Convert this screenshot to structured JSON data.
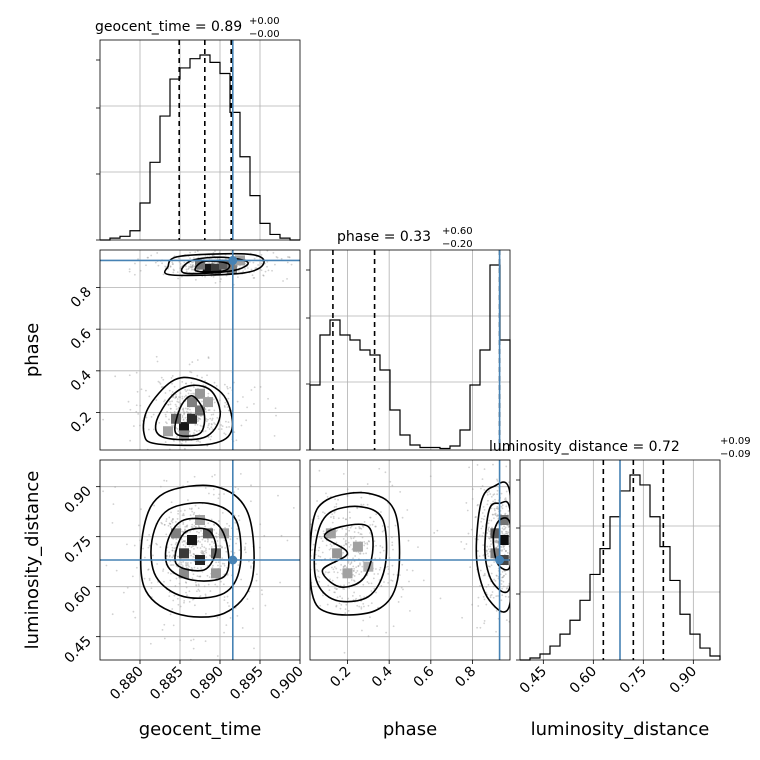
{
  "colors": {
    "truth": "#4682b4",
    "contour": "#000000",
    "grid": "#b0b0b0"
  },
  "chart_data": {
    "type": "corner",
    "parameters": [
      {
        "key": "geocent_time",
        "axis_label": "geocent_time",
        "title_main": "geocent_time = 0.89",
        "title_sup": "+0.00",
        "title_sub": "−0.00",
        "range": [
          0.875,
          0.9
        ],
        "ticks": [
          0.88,
          0.885,
          0.89,
          0.895,
          0.9
        ],
        "tick_labels": [
          "0.880",
          "0.885",
          "0.890",
          "0.895",
          "0.900"
        ],
        "truth": 0.8916,
        "quantiles": [
          0.8849,
          0.8881,
          0.8914
        ],
        "hist_edges": [
          0.875,
          0.87625,
          0.8775,
          0.87875,
          0.88,
          0.88125,
          0.8825,
          0.88375,
          0.885,
          0.88625,
          0.8875,
          0.88875,
          0.89,
          0.89125,
          0.8925,
          0.89375,
          0.895,
          0.89625,
          0.8975,
          0.89875,
          0.9
        ],
        "hist_counts": [
          0,
          0.01,
          0.02,
          0.05,
          0.2,
          0.42,
          0.67,
          0.87,
          0.93,
          0.98,
          1.0,
          0.96,
          0.9,
          0.69,
          0.45,
          0.24,
          0.09,
          0.03,
          0.01,
          0
        ]
      },
      {
        "key": "phase",
        "axis_label": "phase",
        "title_main": "phase = 0.33",
        "title_sup": "+0.60",
        "title_sub": "−0.20",
        "range": [
          0.02,
          0.98
        ],
        "ticks": [
          0.2,
          0.4,
          0.6,
          0.8
        ],
        "tick_labels": [
          "0.2",
          "0.4",
          "0.6",
          "0.8"
        ],
        "truth": 0.93,
        "quantiles": [
          0.13,
          0.33,
          0.93
        ],
        "hist_edges": [
          0.02,
          0.068,
          0.116,
          0.164,
          0.212,
          0.26,
          0.308,
          0.356,
          0.404,
          0.452,
          0.5,
          0.548,
          0.596,
          0.644,
          0.692,
          0.74,
          0.788,
          0.836,
          0.884,
          0.932,
          0.98
        ],
        "hist_counts": [
          0.13,
          0.23,
          0.26,
          0.23,
          0.22,
          0.2,
          0.19,
          0.16,
          0.08,
          0.03,
          0.01,
          0.005,
          0.005,
          0.003,
          0.008,
          0.04,
          0.13,
          0.2,
          0.37,
          0.22
        ]
      },
      {
        "key": "luminosity_distance",
        "axis_label": "luminosity_distance",
        "title_main": "luminosity_distance = 0.72",
        "title_sup": "+0.09",
        "title_sub": "−0.09",
        "range": [
          0.38,
          0.98
        ],
        "ticks": [
          0.45,
          0.6,
          0.75,
          0.9
        ],
        "tick_labels": [
          "0.45",
          "0.60",
          "0.75",
          "0.90"
        ],
        "truth": 0.68,
        "quantiles": [
          0.63,
          0.72,
          0.81
        ],
        "hist_edges": [
          0.38,
          0.41,
          0.44,
          0.47,
          0.5,
          0.53,
          0.56,
          0.59,
          0.62,
          0.65,
          0.68,
          0.71,
          0.74,
          0.77,
          0.8,
          0.83,
          0.86,
          0.89,
          0.92,
          0.95,
          0.98
        ],
        "hist_counts": [
          0,
          0.01,
          0.03,
          0.07,
          0.13,
          0.2,
          0.3,
          0.43,
          0.56,
          0.72,
          0.85,
          0.93,
          0.88,
          0.72,
          0.57,
          0.4,
          0.23,
          0.13,
          0.06,
          0.02
        ]
      }
    ],
    "pairs": [
      {
        "x": "geocent_time",
        "y": "phase",
        "contours": [
          [
            [
              0.882,
              0.05
            ],
            [
              0.889,
              0.05
            ],
            [
              0.8915,
              0.12
            ],
            [
              0.8905,
              0.28
            ],
            [
              0.887,
              0.36
            ],
            [
              0.884,
              0.35
            ],
            [
              0.881,
              0.22
            ],
            [
              0.8805,
              0.1
            ]
          ],
          [
            [
              0.883,
              0.08
            ],
            [
              0.888,
              0.08
            ],
            [
              0.89,
              0.18
            ],
            [
              0.889,
              0.3
            ],
            [
              0.8865,
              0.33
            ],
            [
              0.884,
              0.28
            ],
            [
              0.882,
              0.15
            ]
          ],
          [
            [
              0.8845,
              0.1
            ],
            [
              0.8875,
              0.1
            ],
            [
              0.888,
              0.2
            ],
            [
              0.8865,
              0.28
            ],
            [
              0.885,
              0.22
            ]
          ],
          [
            [
              0.884,
              0.86
            ],
            [
              0.893,
              0.87
            ],
            [
              0.8955,
              0.92
            ],
            [
              0.8935,
              0.96
            ],
            [
              0.885,
              0.95
            ],
            [
              0.8835,
              0.9
            ]
          ],
          [
            [
              0.8855,
              0.87
            ],
            [
              0.8915,
              0.88
            ],
            [
              0.8935,
              0.92
            ],
            [
              0.8905,
              0.945
            ],
            [
              0.8865,
              0.93
            ]
          ],
          [
            [
              0.887,
              0.88
            ],
            [
              0.8905,
              0.88
            ],
            [
              0.891,
              0.915
            ],
            [
              0.888,
              0.925
            ]
          ]
        ],
        "density": [
          [
            0.8855,
            0.13,
            0.9
          ],
          [
            0.8865,
            0.17,
            0.8
          ],
          [
            0.8845,
            0.17,
            0.55
          ],
          [
            0.8875,
            0.21,
            0.5
          ],
          [
            0.8865,
            0.25,
            0.45
          ],
          [
            0.8855,
            0.09,
            0.4
          ],
          [
            0.8875,
            0.29,
            0.35
          ],
          [
            0.8885,
            0.25,
            0.3
          ],
          [
            0.8835,
            0.11,
            0.3
          ],
          [
            0.8885,
            0.89,
            0.9
          ],
          [
            0.8895,
            0.89,
            0.75
          ],
          [
            0.8905,
            0.91,
            0.6
          ],
          [
            0.8875,
            0.91,
            0.5
          ],
          [
            0.8915,
            0.89,
            0.45
          ],
          [
            0.8925,
            0.93,
            0.3
          ]
        ]
      },
      {
        "x": "geocent_time",
        "y": "luminosity_distance",
        "contours": [
          [
            [
              0.8805,
              0.6
            ],
            [
              0.8845,
              0.52
            ],
            [
              0.8905,
              0.52
            ],
            [
              0.894,
              0.62
            ],
            [
              0.8935,
              0.82
            ],
            [
              0.8895,
              0.9
            ],
            [
              0.883,
              0.88
            ],
            [
              0.8805,
              0.78
            ]
          ],
          [
            [
              0.882,
              0.63
            ],
            [
              0.8855,
              0.57
            ],
            [
              0.8905,
              0.58
            ],
            [
              0.8925,
              0.66
            ],
            [
              0.892,
              0.8
            ],
            [
              0.8885,
              0.85
            ],
            [
              0.8835,
              0.83
            ],
            [
              0.8815,
              0.74
            ]
          ],
          [
            [
              0.8835,
              0.66
            ],
            [
              0.8865,
              0.62
            ],
            [
              0.8905,
              0.63
            ],
            [
              0.891,
              0.71
            ],
            [
              0.8895,
              0.79
            ],
            [
              0.8855,
              0.8
            ],
            [
              0.8835,
              0.74
            ]
          ],
          [
            [
              0.8845,
              0.67
            ],
            [
              0.888,
              0.65
            ],
            [
              0.8895,
              0.71
            ],
            [
              0.8885,
              0.77
            ],
            [
              0.8855,
              0.76
            ]
          ]
        ],
        "density": [
          [
            0.8865,
            0.74,
            0.9
          ],
          [
            0.8875,
            0.68,
            0.85
          ],
          [
            0.8855,
            0.7,
            0.75
          ],
          [
            0.8885,
            0.76,
            0.6
          ],
          [
            0.8895,
            0.7,
            0.55
          ],
          [
            0.8845,
            0.76,
            0.45
          ],
          [
            0.8855,
            0.64,
            0.4
          ],
          [
            0.8895,
            0.64,
            0.35
          ],
          [
            0.8905,
            0.76,
            0.3
          ],
          [
            0.8875,
            0.8,
            0.3
          ]
        ]
      },
      {
        "x": "phase",
        "y": "luminosity_distance",
        "contours": [
          [
            [
              0.03,
              0.58
            ],
            [
              0.12,
              0.52
            ],
            [
              0.34,
              0.53
            ],
            [
              0.44,
              0.62
            ],
            [
              0.43,
              0.82
            ],
            [
              0.3,
              0.88
            ],
            [
              0.1,
              0.86
            ],
            [
              0.03,
              0.78
            ]
          ],
          [
            [
              0.05,
              0.62
            ],
            [
              0.14,
              0.56
            ],
            [
              0.3,
              0.57
            ],
            [
              0.38,
              0.66
            ],
            [
              0.37,
              0.8
            ],
            [
              0.26,
              0.84
            ],
            [
              0.11,
              0.82
            ],
            [
              0.05,
              0.74
            ]
          ],
          [
            [
              0.08,
              0.65
            ],
            [
              0.16,
              0.6
            ],
            [
              0.27,
              0.62
            ],
            [
              0.32,
              0.7
            ],
            [
              0.3,
              0.78
            ],
            [
              0.17,
              0.78
            ],
            [
              0.09,
              0.75
            ],
            [
              0.2,
              0.7
            ]
          ],
          [
            [
              0.98,
              0.55
            ],
            [
              0.88,
              0.56
            ],
            [
              0.82,
              0.68
            ],
            [
              0.84,
              0.85
            ],
            [
              0.9,
              0.9
            ],
            [
              0.98,
              0.88
            ]
          ],
          [
            [
              0.98,
              0.6
            ],
            [
              0.9,
              0.61
            ],
            [
              0.86,
              0.7
            ],
            [
              0.88,
              0.83
            ],
            [
              0.93,
              0.85
            ],
            [
              0.98,
              0.83
            ]
          ],
          [
            [
              0.98,
              0.66
            ],
            [
              0.92,
              0.67
            ],
            [
              0.9,
              0.75
            ],
            [
              0.93,
              0.8
            ],
            [
              0.98,
              0.79
            ]
          ]
        ],
        "density": [
          [
            0.95,
            0.74,
            0.95
          ],
          [
            0.95,
            0.68,
            0.7
          ],
          [
            0.91,
            0.76,
            0.6
          ],
          [
            0.95,
            0.8,
            0.5
          ],
          [
            0.91,
            0.7,
            0.45
          ],
          [
            0.15,
            0.7,
            0.35
          ],
          [
            0.25,
            0.72,
            0.3
          ],
          [
            0.2,
            0.64,
            0.3
          ],
          [
            0.12,
            0.76,
            0.3
          ],
          [
            0.3,
            0.66,
            0.25
          ]
        ]
      }
    ],
    "grid": true
  }
}
